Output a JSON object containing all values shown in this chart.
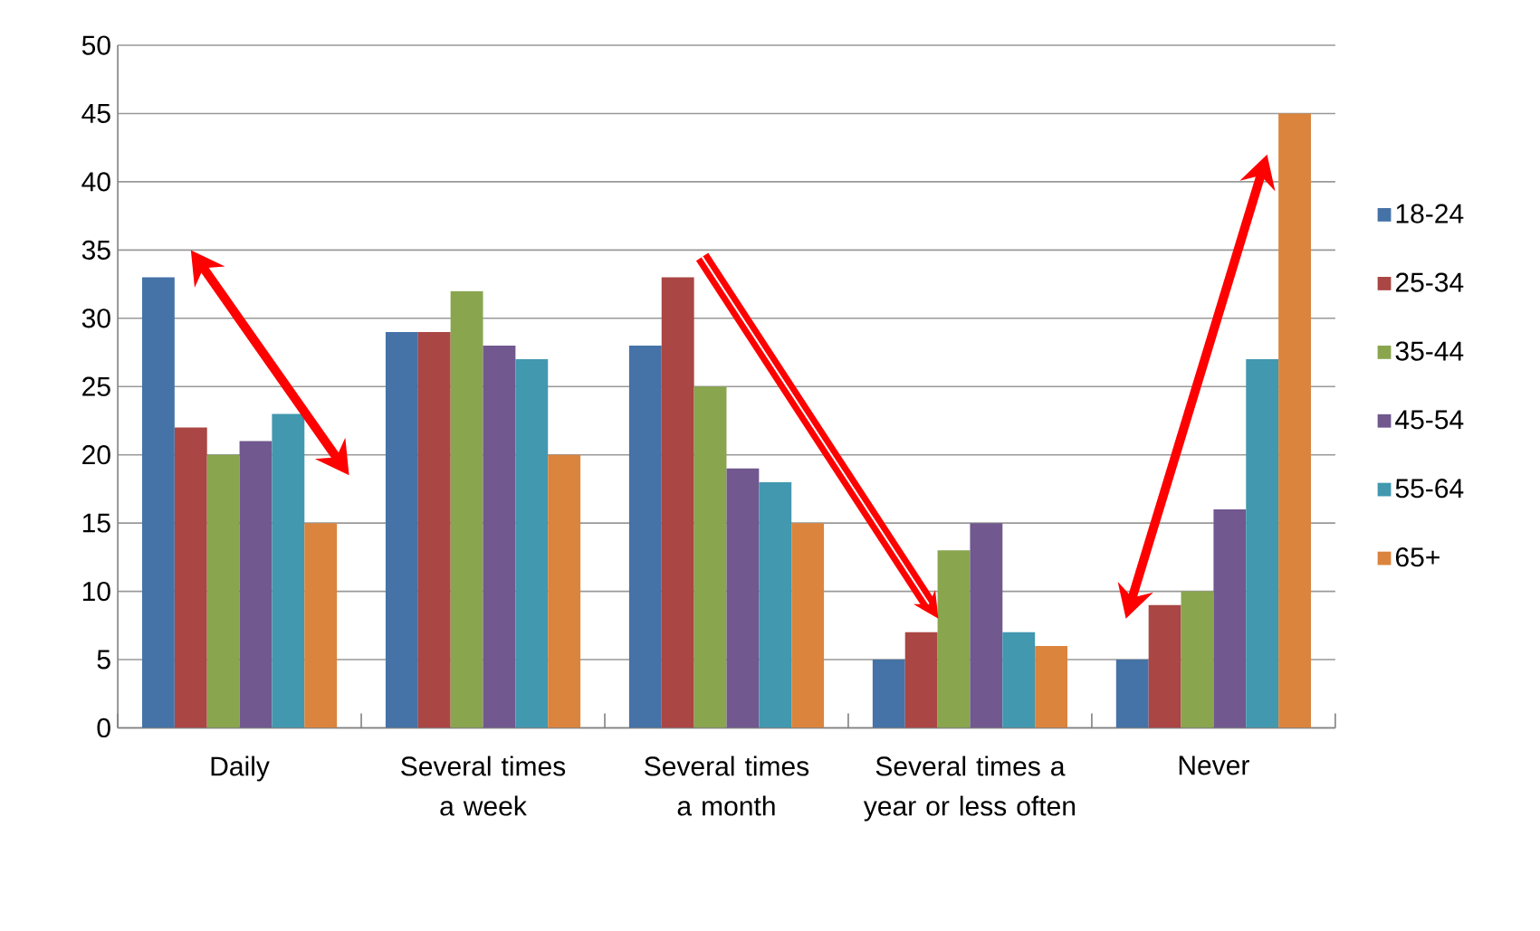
{
  "chart_data": {
    "type": "bar",
    "categories": [
      "Daily",
      "Several times a week",
      "Several times a month",
      "Several times a year or less often",
      "Never"
    ],
    "series": [
      {
        "name": "18-24",
        "color": "#4572a7",
        "values": [
          33,
          29,
          28,
          5,
          5
        ]
      },
      {
        "name": "25-34",
        "color": "#aa4643",
        "values": [
          22,
          29,
          33,
          7,
          9
        ]
      },
      {
        "name": "35-44",
        "color": "#89a54e",
        "values": [
          20,
          32,
          25,
          13,
          10
        ]
      },
      {
        "name": "45-54",
        "color": "#71588f",
        "values": [
          21,
          28,
          19,
          15,
          16
        ]
      },
      {
        "name": "55-64",
        "color": "#4198af",
        "values": [
          23,
          27,
          18,
          7,
          27
        ]
      },
      {
        "name": "65+",
        "color": "#db843d",
        "values": [
          15,
          20,
          15,
          6,
          45
        ]
      }
    ],
    "ylim": [
      0,
      50
    ],
    "yticks": [
      0,
      5,
      10,
      15,
      20,
      25,
      30,
      35,
      40,
      45,
      50
    ],
    "grid": "y",
    "legend": "right"
  }
}
